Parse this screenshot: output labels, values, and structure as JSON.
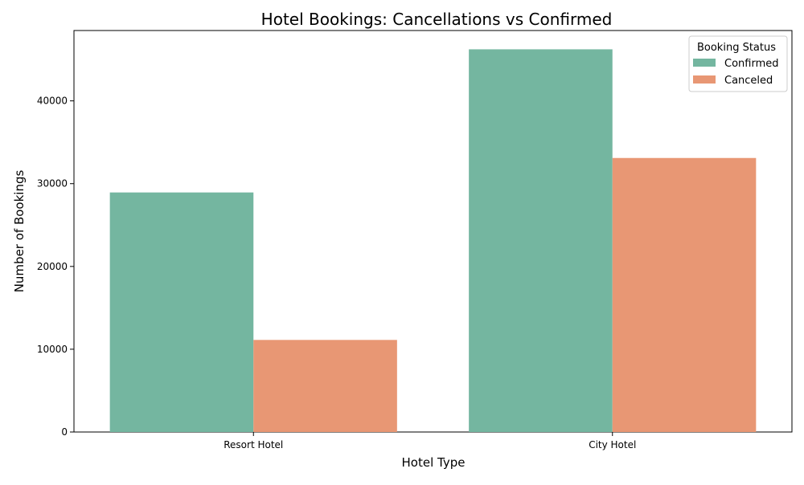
{
  "chart_data": {
    "type": "bar",
    "title": "Hotel Bookings: Cancellations vs Confirmed",
    "xlabel": "Hotel Type",
    "ylabel": "Number of Bookings",
    "categories": [
      "Resort Hotel",
      "City Hotel"
    ],
    "series": [
      {
        "name": "Confirmed",
        "color": "#74b6a0",
        "values": [
          28938,
          46228
        ]
      },
      {
        "name": "Canceled",
        "color": "#e89774",
        "values": [
          11122,
          33102
        ]
      }
    ],
    "ylim": [
      0,
      48500
    ],
    "yticks": [
      0,
      10000,
      20000,
      30000,
      40000
    ],
    "grid": false,
    "legend": {
      "title": "Booking Status",
      "position": "top-right"
    }
  }
}
